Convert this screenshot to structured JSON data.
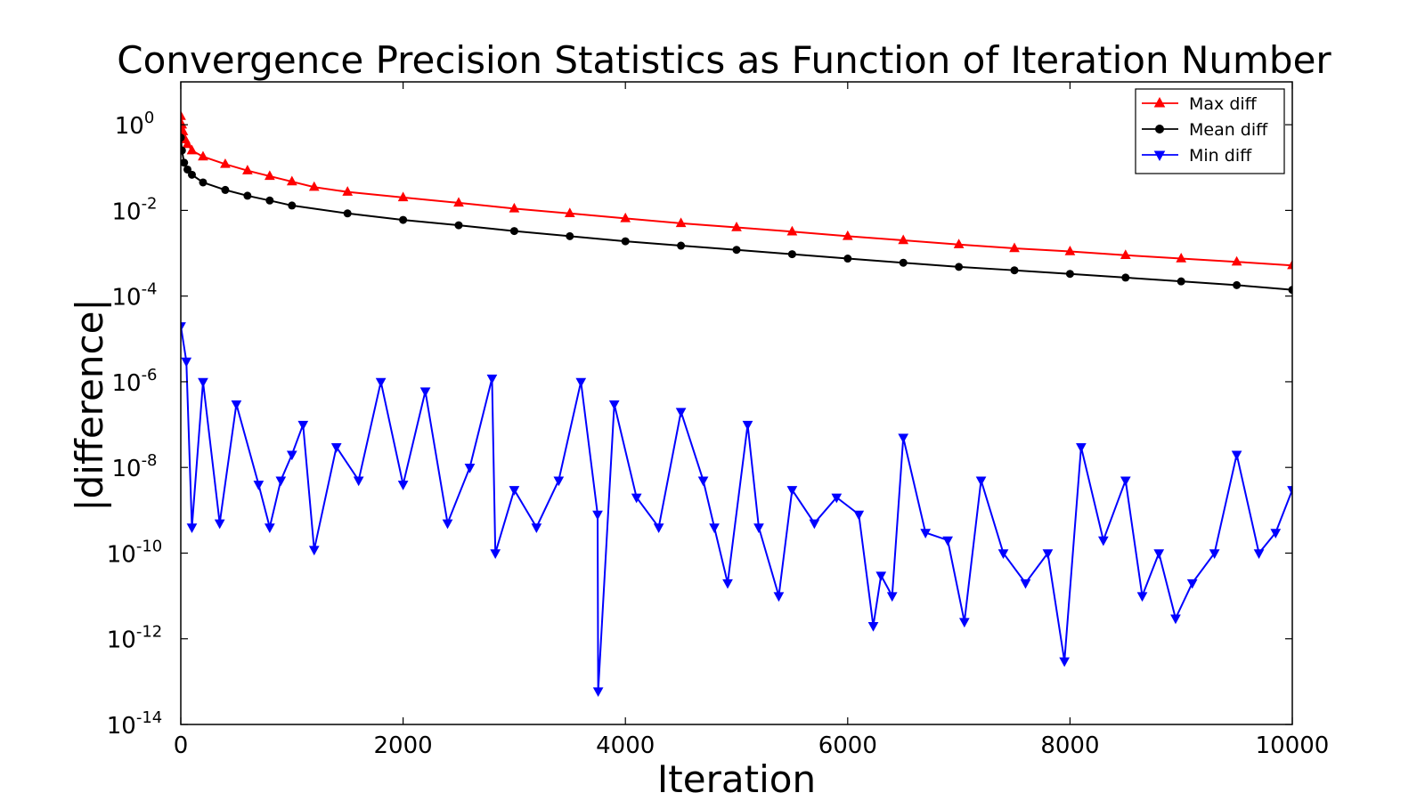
{
  "chart_data": {
    "type": "scatter",
    "title": "Convergence Precision Statistics as Function of Iteration Number",
    "xlabel": "Iteration",
    "ylabel": "|difference|",
    "xlim": [
      0,
      10000
    ],
    "ylim_log10": [
      -14,
      1
    ],
    "yscale": "log",
    "grid": false,
    "legend_position": "top-right",
    "x_ticks": [
      0,
      2000,
      4000,
      6000,
      8000,
      10000
    ],
    "y_ticks_log10": [
      0,
      -2,
      -4,
      -6,
      -8,
      -10,
      -12,
      -14
    ],
    "y_tick_base": "10",
    "y_tick_exponents": [
      "0",
      "-2",
      "-4",
      "-6",
      "-8",
      "-10",
      "-12",
      "-14"
    ],
    "series": [
      {
        "name": "Max diff",
        "color": "#ff0000",
        "marker": "triangle-up",
        "points": [
          [
            0,
            1.58
          ],
          [
            10,
            1.0
          ],
          [
            20,
            0.7
          ],
          [
            40,
            0.45
          ],
          [
            60,
            0.35
          ],
          [
            100,
            0.25
          ],
          [
            200,
            0.18
          ],
          [
            400,
            0.12
          ],
          [
            600,
            0.085
          ],
          [
            800,
            0.063
          ],
          [
            1000,
            0.047
          ],
          [
            1200,
            0.035
          ],
          [
            1500,
            0.027
          ],
          [
            2000,
            0.02
          ],
          [
            2500,
            0.015
          ],
          [
            3000,
            0.011
          ],
          [
            3500,
            0.0085
          ],
          [
            4000,
            0.0065
          ],
          [
            4500,
            0.005
          ],
          [
            5000,
            0.004
          ],
          [
            5500,
            0.0032
          ],
          [
            6000,
            0.0025
          ],
          [
            6500,
            0.002
          ],
          [
            7000,
            0.0016
          ],
          [
            7500,
            0.0013
          ],
          [
            8000,
            0.0011
          ],
          [
            8500,
            0.0009
          ],
          [
            9000,
            0.00075
          ],
          [
            9500,
            0.00063
          ],
          [
            10000,
            0.00052
          ]
        ]
      },
      {
        "name": "Mean diff",
        "color": "#000000",
        "marker": "circle",
        "points": [
          [
            0,
            0.5
          ],
          [
            10,
            0.25
          ],
          [
            30,
            0.13
          ],
          [
            60,
            0.09
          ],
          [
            100,
            0.068
          ],
          [
            200,
            0.045
          ],
          [
            400,
            0.03
          ],
          [
            600,
            0.022
          ],
          [
            800,
            0.017
          ],
          [
            1000,
            0.013
          ],
          [
            1500,
            0.0085
          ],
          [
            2000,
            0.006
          ],
          [
            2500,
            0.0045
          ],
          [
            3000,
            0.0033
          ],
          [
            3500,
            0.0025
          ],
          [
            4000,
            0.0019
          ],
          [
            4500,
            0.0015
          ],
          [
            5000,
            0.0012
          ],
          [
            5500,
            0.00095
          ],
          [
            6000,
            0.00075
          ],
          [
            6500,
            0.0006
          ],
          [
            7000,
            0.00048
          ],
          [
            7500,
            0.0004
          ],
          [
            8000,
            0.00033
          ],
          [
            8500,
            0.00027
          ],
          [
            9000,
            0.00022
          ],
          [
            9500,
            0.00018
          ],
          [
            10000,
            0.00014
          ]
        ]
      },
      {
        "name": "Min diff",
        "color": "#0000ff",
        "marker": "triangle-down",
        "points": [
          [
            0,
            2e-05
          ],
          [
            50,
            3e-06
          ],
          [
            100,
            4e-10
          ],
          [
            200,
            1e-06
          ],
          [
            350,
            5e-10
          ],
          [
            500,
            3e-07
          ],
          [
            700,
            4e-09
          ],
          [
            800,
            4e-10
          ],
          [
            900,
            5e-09
          ],
          [
            1000,
            2e-08
          ],
          [
            1100,
            1e-07
          ],
          [
            1200,
            1.2e-10
          ],
          [
            1400,
            3e-08
          ],
          [
            1600,
            5e-09
          ],
          [
            1800,
            1e-06
          ],
          [
            2000,
            4e-09
          ],
          [
            2200,
            6e-07
          ],
          [
            2400,
            5e-10
          ],
          [
            2600,
            1e-08
          ],
          [
            2800,
            1.2e-06
          ],
          [
            2830,
            1e-10
          ],
          [
            3000,
            3e-09
          ],
          [
            3200,
            4e-10
          ],
          [
            3400,
            5e-09
          ],
          [
            3600,
            1e-06
          ],
          [
            3750,
            8e-10
          ],
          [
            3755,
            6e-14
          ],
          [
            3900,
            3e-07
          ],
          [
            4100,
            2e-09
          ],
          [
            4300,
            4e-10
          ],
          [
            4500,
            2e-07
          ],
          [
            4700,
            5e-09
          ],
          [
            4800,
            4e-10
          ],
          [
            4920,
            2e-11
          ],
          [
            5100,
            1e-07
          ],
          [
            5200,
            4e-10
          ],
          [
            5380,
            1e-11
          ],
          [
            5500,
            3e-09
          ],
          [
            5700,
            5e-10
          ],
          [
            5900,
            2e-09
          ],
          [
            6100,
            8e-10
          ],
          [
            6230,
            2e-12
          ],
          [
            6300,
            3e-11
          ],
          [
            6400,
            1e-11
          ],
          [
            6500,
            5e-08
          ],
          [
            6700,
            3e-10
          ],
          [
            6900,
            2e-10
          ],
          [
            7050,
            2.5e-12
          ],
          [
            7200,
            5e-09
          ],
          [
            7400,
            1e-10
          ],
          [
            7600,
            2e-11
          ],
          [
            7800,
            1e-10
          ],
          [
            7950,
            3e-13
          ],
          [
            8100,
            3e-08
          ],
          [
            8300,
            2e-10
          ],
          [
            8500,
            5e-09
          ],
          [
            8650,
            1e-11
          ],
          [
            8800,
            1e-10
          ],
          [
            8950,
            3e-12
          ],
          [
            9100,
            2e-11
          ],
          [
            9300,
            1e-10
          ],
          [
            9500,
            2e-08
          ],
          [
            9700,
            1e-10
          ],
          [
            9850,
            3e-10
          ],
          [
            10000,
            3e-09
          ]
        ]
      }
    ]
  }
}
